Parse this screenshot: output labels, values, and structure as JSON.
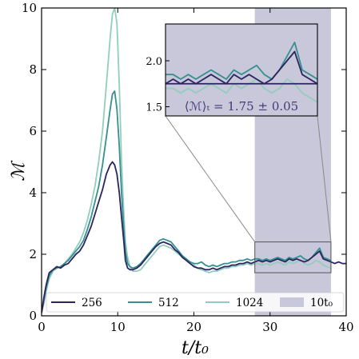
{
  "chart_data": {
    "type": "line",
    "xlabel": "t/t₀",
    "ylabel": "ℳ",
    "xlim": [
      0,
      40
    ],
    "ylim": [
      0,
      10
    ],
    "xticks": [
      0,
      10,
      20,
      30,
      40
    ],
    "yticks": [
      0,
      2,
      4,
      6,
      8,
      10
    ],
    "shaded_region": {
      "x0": 28,
      "x1": 38,
      "label": "10t₀",
      "color": "#c9c7da"
    },
    "legend_position": "bottom",
    "series": [
      {
        "name": "256",
        "color": "#2b2461",
        "x": [
          0,
          0.3,
          0.6,
          1.0,
          1.5,
          2.0,
          2.5,
          3.0,
          3.5,
          4.0,
          4.5,
          5.0,
          5.5,
          6.0,
          6.5,
          7.0,
          7.5,
          8.0,
          8.5,
          9.0,
          9.3,
          9.6,
          9.9,
          10.2,
          10.5,
          10.8,
          11.0,
          11.3,
          11.6,
          12.0,
          12.5,
          13.0,
          13.5,
          14.0,
          14.5,
          15.0,
          15.5,
          16.0,
          16.5,
          17.0,
          17.5,
          18.0,
          18.5,
          19.0,
          19.5,
          20.0,
          20.5,
          21.0,
          21.5,
          22.0,
          22.5,
          23.0,
          23.5,
          24.0,
          24.5,
          25.0,
          25.5,
          26.0,
          26.5,
          27.0,
          27.5,
          28.0,
          28.5,
          29.0,
          29.5,
          30.0,
          30.5,
          31.0,
          31.5,
          32.0,
          32.5,
          33.0,
          33.5,
          34.0,
          34.5,
          35.0,
          35.5,
          36.0,
          36.5,
          37.0,
          37.5,
          38.0,
          38.5,
          39.0,
          39.5,
          40.0
        ],
        "y": [
          0.1,
          0.6,
          1.0,
          1.4,
          1.5,
          1.6,
          1.55,
          1.65,
          1.7,
          1.85,
          2.0,
          2.1,
          2.3,
          2.6,
          2.9,
          3.3,
          3.7,
          4.1,
          4.6,
          4.9,
          5.0,
          4.9,
          4.6,
          4.0,
          3.2,
          2.4,
          1.8,
          1.55,
          1.5,
          1.5,
          1.55,
          1.65,
          1.8,
          1.95,
          2.1,
          2.25,
          2.35,
          2.4,
          2.35,
          2.3,
          2.15,
          2.05,
          1.9,
          1.8,
          1.7,
          1.6,
          1.55,
          1.55,
          1.5,
          1.5,
          1.55,
          1.5,
          1.55,
          1.6,
          1.6,
          1.65,
          1.65,
          1.7,
          1.7,
          1.75,
          1.7,
          1.75,
          1.8,
          1.75,
          1.8,
          1.75,
          1.8,
          1.85,
          1.8,
          1.75,
          1.85,
          1.8,
          1.85,
          1.8,
          1.75,
          1.8,
          1.9,
          2.0,
          2.1,
          1.85,
          1.8,
          1.75,
          1.7,
          1.75,
          1.7,
          1.7
        ]
      },
      {
        "name": "512",
        "color": "#35908f",
        "x": [
          0,
          0.3,
          0.6,
          1.0,
          1.5,
          2.0,
          2.5,
          3.0,
          3.5,
          4.0,
          4.5,
          5.0,
          5.5,
          6.0,
          6.5,
          7.0,
          7.5,
          8.0,
          8.5,
          9.0,
          9.3,
          9.6,
          9.9,
          10.2,
          10.5,
          10.8,
          11.0,
          11.3,
          11.6,
          12.0,
          12.5,
          13.0,
          13.5,
          14.0,
          14.5,
          15.0,
          15.5,
          16.0,
          16.5,
          17.0,
          17.5,
          18.0,
          18.5,
          19.0,
          19.5,
          20.0,
          20.5,
          21.0,
          21.5,
          22.0,
          22.5,
          23.0,
          23.5,
          24.0,
          24.5,
          25.0,
          25.5,
          26.0,
          26.5,
          27.0,
          27.5,
          28.0,
          28.5,
          29.0,
          29.5,
          30.0,
          30.5,
          31.0,
          31.5,
          32.0,
          32.5,
          33.0,
          33.5,
          34.0,
          34.5,
          35.0,
          35.5,
          36.0,
          36.5,
          37.0,
          37.5,
          38.0
        ],
        "y": [
          0.1,
          0.5,
          0.9,
          1.3,
          1.5,
          1.55,
          1.6,
          1.7,
          1.8,
          1.95,
          2.1,
          2.25,
          2.45,
          2.8,
          3.2,
          3.7,
          4.2,
          4.9,
          5.8,
          6.7,
          7.2,
          7.3,
          6.7,
          5.5,
          4.0,
          2.8,
          2.1,
          1.7,
          1.6,
          1.55,
          1.6,
          1.7,
          1.85,
          2.0,
          2.15,
          2.3,
          2.45,
          2.5,
          2.45,
          2.4,
          2.25,
          2.1,
          1.95,
          1.85,
          1.75,
          1.7,
          1.7,
          1.75,
          1.65,
          1.6,
          1.65,
          1.6,
          1.65,
          1.7,
          1.7,
          1.75,
          1.75,
          1.8,
          1.8,
          1.85,
          1.8,
          1.85,
          1.85,
          1.8,
          1.85,
          1.8,
          1.85,
          1.9,
          1.85,
          1.8,
          1.9,
          1.85,
          1.9,
          1.95,
          1.85,
          1.8,
          1.9,
          2.05,
          2.2,
          1.9,
          1.85,
          1.8
        ]
      },
      {
        "name": "1024",
        "color": "#92cdbd",
        "x": [
          0,
          0.3,
          0.6,
          1.0,
          1.5,
          2.0,
          2.5,
          3.0,
          3.5,
          4.0,
          4.5,
          5.0,
          5.5,
          6.0,
          6.5,
          7.0,
          7.5,
          8.0,
          8.5,
          9.0,
          9.3,
          9.6,
          9.9,
          10.2,
          10.5,
          10.8,
          11.0,
          11.3,
          11.6,
          12.0,
          12.5,
          13.0,
          13.5,
          14.0,
          14.5,
          15.0,
          15.5,
          16.0,
          16.5,
          17.0,
          17.5,
          18.0,
          18.5,
          19.0,
          19.5,
          20.0,
          20.5,
          21.0,
          21.5,
          22.0,
          22.5,
          23.0,
          23.5,
          24.0,
          24.5,
          25.0,
          25.5,
          26.0,
          26.5,
          27.0,
          27.5,
          28.0,
          28.5,
          29.0,
          29.5,
          30.0,
          30.5,
          31.0,
          31.5,
          32.0,
          32.5,
          33.0,
          33.5,
          34.0,
          34.5,
          35.0,
          35.5,
          36.0,
          36.5,
          37.0,
          37.5,
          38.0
        ],
        "y": [
          0.1,
          0.4,
          0.8,
          1.2,
          1.45,
          1.55,
          1.6,
          1.7,
          1.85,
          2.0,
          2.2,
          2.4,
          2.7,
          3.1,
          3.6,
          4.2,
          5.0,
          6.0,
          7.5,
          9.0,
          9.8,
          10.0,
          9.5,
          7.5,
          5.0,
          3.3,
          2.4,
          1.9,
          1.6,
          1.45,
          1.45,
          1.5,
          1.65,
          1.8,
          1.95,
          2.1,
          2.25,
          2.3,
          2.25,
          2.2,
          2.1,
          2.0,
          1.9,
          1.8,
          1.7,
          1.65,
          1.55,
          1.5,
          1.45,
          1.4,
          1.45,
          1.45,
          1.5,
          1.55,
          1.55,
          1.6,
          1.6,
          1.65,
          1.65,
          1.7,
          1.65,
          1.7,
          1.7,
          1.65,
          1.7,
          1.65,
          1.7,
          1.75,
          1.7,
          1.65,
          1.75,
          1.7,
          1.75,
          1.8,
          1.7,
          1.65,
          1.7,
          1.8,
          1.75,
          1.65,
          1.6,
          1.55
        ]
      }
    ],
    "inset": {
      "xlim": [
        28,
        38
      ],
      "ylim": [
        1.4,
        2.4
      ],
      "yticks": [
        1.5,
        2.0
      ],
      "mean_line": 1.75,
      "annotation": "⟨ℳ⟩ₜ = 1.75 ± 0.05"
    }
  },
  "legend": {
    "items": [
      "256",
      "512",
      "1024",
      "10t₀"
    ]
  }
}
